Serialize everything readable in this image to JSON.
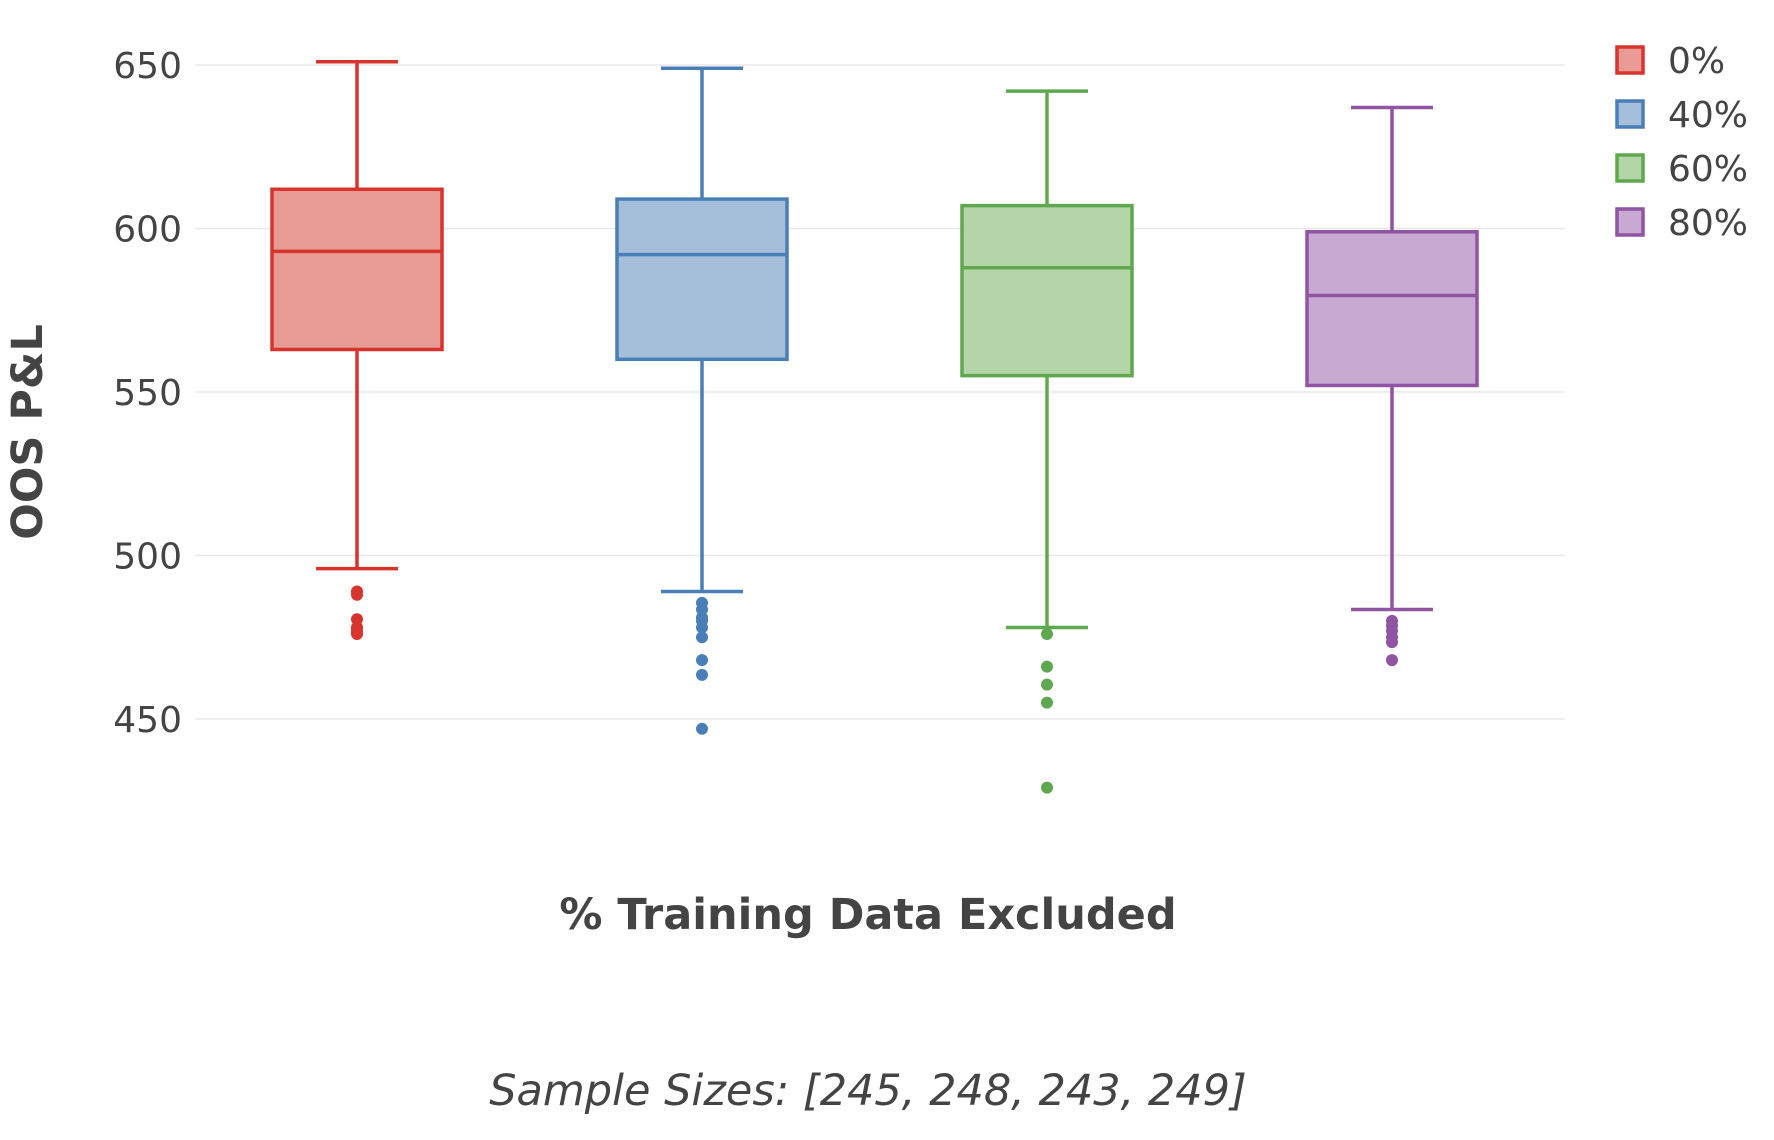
{
  "chart_data": {
    "type": "box",
    "xlabel": "% Training Data Excluded",
    "ylabel": "OOS P&L",
    "caption": "Sample Sizes: [245, 248, 243, 249]",
    "ylim": [
      430,
      655
    ],
    "yticks": [
      450,
      500,
      550,
      600,
      650
    ],
    "grid": true,
    "legend_position": "top-right",
    "series": [
      {
        "name": "0%",
        "color": "#d6342d",
        "fill": "#e89a94",
        "whisker_low": 496,
        "q1": 563,
        "median": 593,
        "q3": 612,
        "whisker_high": 651,
        "outliers": [
          476,
          477,
          478,
          480.5,
          488,
          489
        ]
      },
      {
        "name": "40%",
        "color": "#4a7eb6",
        "fill": "#a5bfdb",
        "whisker_low": 489,
        "q1": 560,
        "median": 592,
        "q3": 609,
        "whisker_high": 649,
        "outliers": [
          447,
          463.5,
          468,
          475,
          478,
          480,
          481,
          483.5,
          485.5
        ]
      },
      {
        "name": "60%",
        "color": "#5fa84f",
        "fill": "#b3d5a8",
        "whisker_low": 478,
        "q1": 555,
        "median": 588,
        "q3": 607,
        "whisker_high": 642,
        "outliers": [
          429,
          455,
          460.5,
          466,
          476
        ]
      },
      {
        "name": "80%",
        "color": "#8f54a2",
        "fill": "#c7a9d1",
        "whisker_low": 483.5,
        "q1": 552,
        "median": 579.5,
        "q3": 599,
        "whisker_high": 637,
        "outliers": [
          468,
          473.5,
          475,
          477,
          478.5,
          480
        ]
      }
    ]
  }
}
